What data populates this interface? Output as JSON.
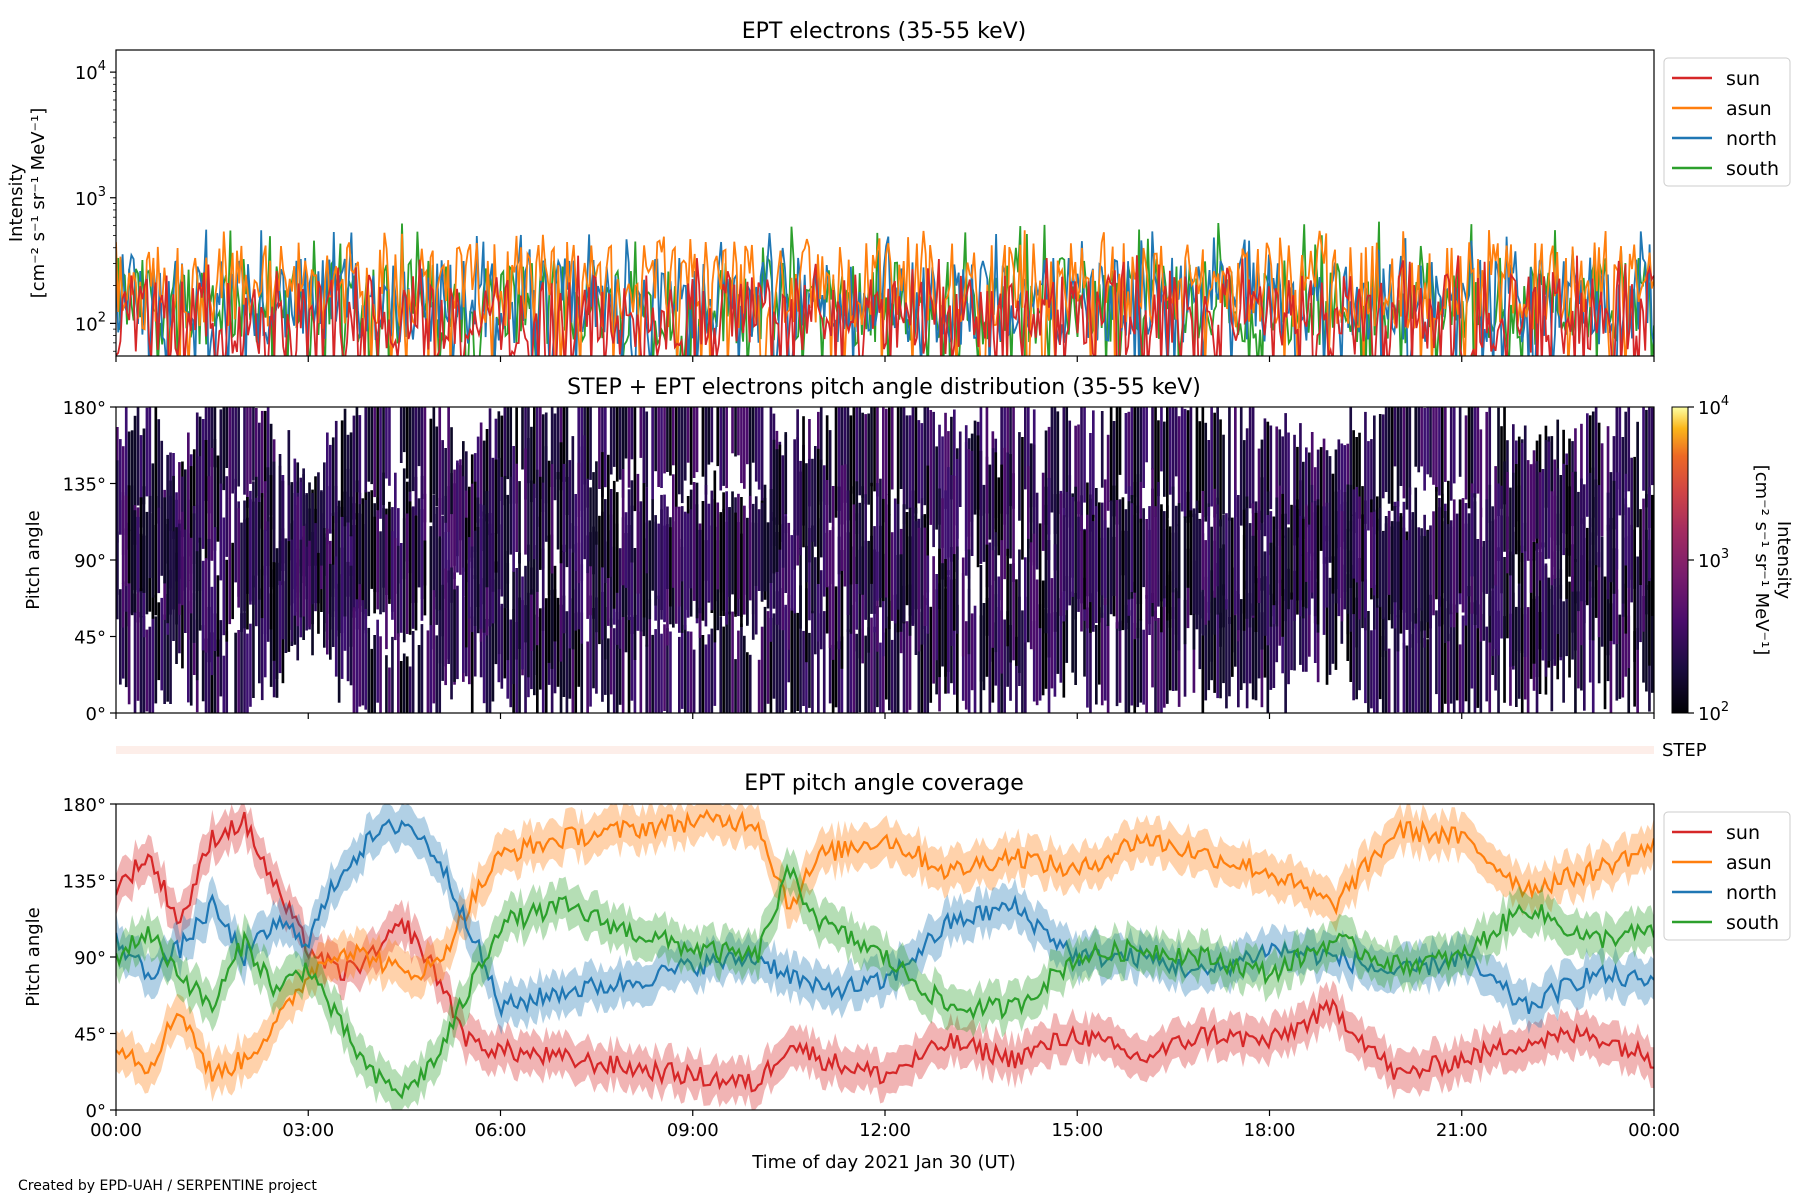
{
  "colors": {
    "sun": "#d62728",
    "asun": "#ff7f0e",
    "north": "#1f77b4",
    "south": "#2ca02c",
    "step_band": "#fdeee9"
  },
  "footer": {
    "credit": "Created by EPD-UAH / SERPENTINE project"
  },
  "chart_data": [
    {
      "type": "line",
      "title": "EPT electrons (35-55 keV)",
      "ylabel_line1": "Intensity",
      "ylabel_line2": "[cm⁻² s⁻¹ sr⁻¹ MeV⁻¹]",
      "yscale": "log",
      "ylim": [
        55,
        15000
      ],
      "y_ticks": [
        {
          "base": "10",
          "exp": "2",
          "value": 100
        },
        {
          "base": "10",
          "exp": "3",
          "value": 1000
        },
        {
          "base": "10",
          "exp": "4",
          "value": 10000
        }
      ],
      "legend_placement": "outside-right",
      "series": [
        {
          "name": "sun",
          "typical": 110,
          "peak": 350
        },
        {
          "name": "asun",
          "typical": 200,
          "peak": 560
        },
        {
          "name": "north",
          "typical": 150,
          "peak": 560
        },
        {
          "name": "south",
          "typical": 150,
          "peak": 650
        }
      ]
    },
    {
      "type": "heatmap",
      "title": "STEP + EPT electrons pitch angle distribution (35-55 keV)",
      "ylabel": "Pitch angle",
      "ylim": [
        0,
        180
      ],
      "y_ticks": [
        "0°",
        "45°",
        "90°",
        "135°",
        "180°"
      ],
      "colorbar": {
        "label_line1": "Intensity",
        "label_line2": "[cm⁻² s⁻¹ sr⁻¹ MeV⁻¹]",
        "scale": "log",
        "range": [
          100,
          10000
        ],
        "ticks": [
          {
            "base": "10",
            "exp": "2"
          },
          {
            "base": "10",
            "exp": "3"
          },
          {
            "base": "10",
            "exp": "4"
          }
        ]
      },
      "typical_intensity": 150
    },
    {
      "type": "band",
      "label": "STEP"
    },
    {
      "type": "line",
      "title": "EPT pitch angle coverage",
      "ylabel": "Pitch angle",
      "ylim": [
        0,
        180
      ],
      "y_ticks": [
        "0°",
        "45°",
        "90°",
        "135°",
        "180°"
      ],
      "x_ticks": [
        "00:00",
        "03:00",
        "06:00",
        "09:00",
        "12:00",
        "15:00",
        "18:00",
        "21:00",
        "00:00"
      ],
      "xlim_hours": [
        0,
        24
      ],
      "xlabel": "Time of day 2021 Jan 30 (UT)",
      "legend_placement": "outside-right",
      "series": [
        {
          "name": "sun",
          "x_hours": [
            0,
            0.5,
            1,
            1.5,
            2,
            2.5,
            3,
            3.5,
            4,
            4.5,
            5,
            5.5,
            6,
            7,
            8,
            9,
            10,
            10.5,
            11,
            12,
            13,
            14,
            15,
            16,
            17,
            18,
            19,
            20,
            21,
            22,
            23,
            24
          ],
          "y": [
            130,
            150,
            110,
            160,
            170,
            130,
            95,
            80,
            90,
            110,
            80,
            40,
            35,
            30,
            25,
            20,
            15,
            40,
            30,
            20,
            40,
            30,
            45,
            30,
            45,
            40,
            60,
            20,
            30,
            40,
            45,
            30
          ]
        },
        {
          "name": "asun",
          "x_hours": [
            0,
            0.5,
            1,
            1.5,
            2,
            2.5,
            3,
            3.5,
            4,
            4.5,
            5,
            5.5,
            6,
            7,
            8,
            9,
            10,
            10.5,
            11,
            12,
            13,
            14,
            15,
            16,
            17,
            18,
            19,
            20,
            21,
            22,
            23,
            24
          ],
          "y": [
            40,
            25,
            60,
            20,
            30,
            50,
            80,
            95,
            90,
            80,
            85,
            120,
            150,
            160,
            165,
            170,
            170,
            120,
            150,
            160,
            140,
            150,
            140,
            160,
            150,
            140,
            120,
            165,
            160,
            130,
            140,
            155
          ]
        },
        {
          "name": "north",
          "x_hours": [
            0,
            0.5,
            1,
            1.5,
            2,
            2.5,
            3,
            3.5,
            4,
            4.5,
            5,
            5.5,
            6,
            7,
            8,
            9,
            10,
            10.5,
            11,
            12,
            13,
            14,
            15,
            16,
            17,
            18,
            19,
            20,
            21,
            22,
            23,
            24
          ],
          "y": [
            100,
            80,
            95,
            120,
            90,
            110,
            100,
            140,
            160,
            170,
            150,
            110,
            60,
            70,
            75,
            85,
            90,
            80,
            70,
            75,
            110,
            120,
            90,
            90,
            80,
            95,
            90,
            80,
            90,
            60,
            80,
            75
          ]
        },
        {
          "name": "south",
          "x_hours": [
            0,
            0.5,
            1,
            1.5,
            2,
            2.5,
            3,
            3.5,
            4,
            4.5,
            5,
            5.5,
            6,
            7,
            8,
            9,
            10,
            10.5,
            11,
            12,
            13,
            14,
            15,
            16,
            17,
            18,
            19,
            20,
            21,
            22,
            23,
            24
          ],
          "y": [
            90,
            105,
            80,
            60,
            100,
            70,
            85,
            50,
            20,
            10,
            30,
            70,
            110,
            120,
            105,
            95,
            90,
            140,
            110,
            90,
            60,
            60,
            90,
            95,
            90,
            80,
            100,
            85,
            90,
            120,
            100,
            105
          ]
        }
      ]
    }
  ]
}
